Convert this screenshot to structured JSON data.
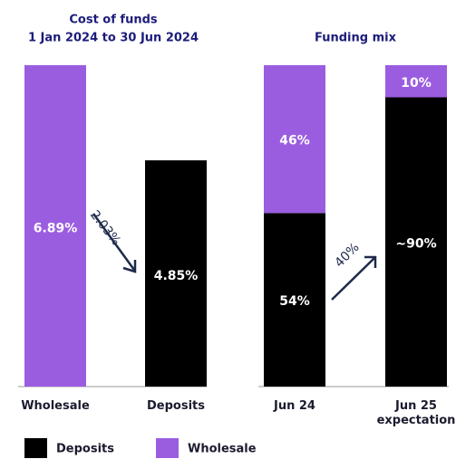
{
  "chart_data": [
    {
      "type": "bar",
      "title": "Cost of funds",
      "subtitle": "1 Jan 2024 to 30 Jun 2024",
      "categories": [
        "Wholesale",
        "Deposits"
      ],
      "values": [
        6.89,
        4.85
      ],
      "value_labels": [
        "6.89%",
        "4.85%"
      ],
      "colors": [
        "#9b5de0",
        "#000000"
      ],
      "annotations": [
        "2.03%"
      ]
    },
    {
      "type": "stacked_bar",
      "title": "Funding mix",
      "categories": [
        "Jun 24",
        "Jun 25 expectation"
      ],
      "series": [
        {
          "name": "Deposits",
          "color": "#000000",
          "values": [
            54,
            90
          ],
          "value_labels": [
            "54%",
            "~90%"
          ]
        },
        {
          "name": "Wholesale",
          "color": "#9b5de0",
          "values": [
            46,
            10
          ],
          "value_labels": [
            "46%",
            "10%"
          ]
        }
      ],
      "annotations": [
        "40%"
      ]
    }
  ]
}
